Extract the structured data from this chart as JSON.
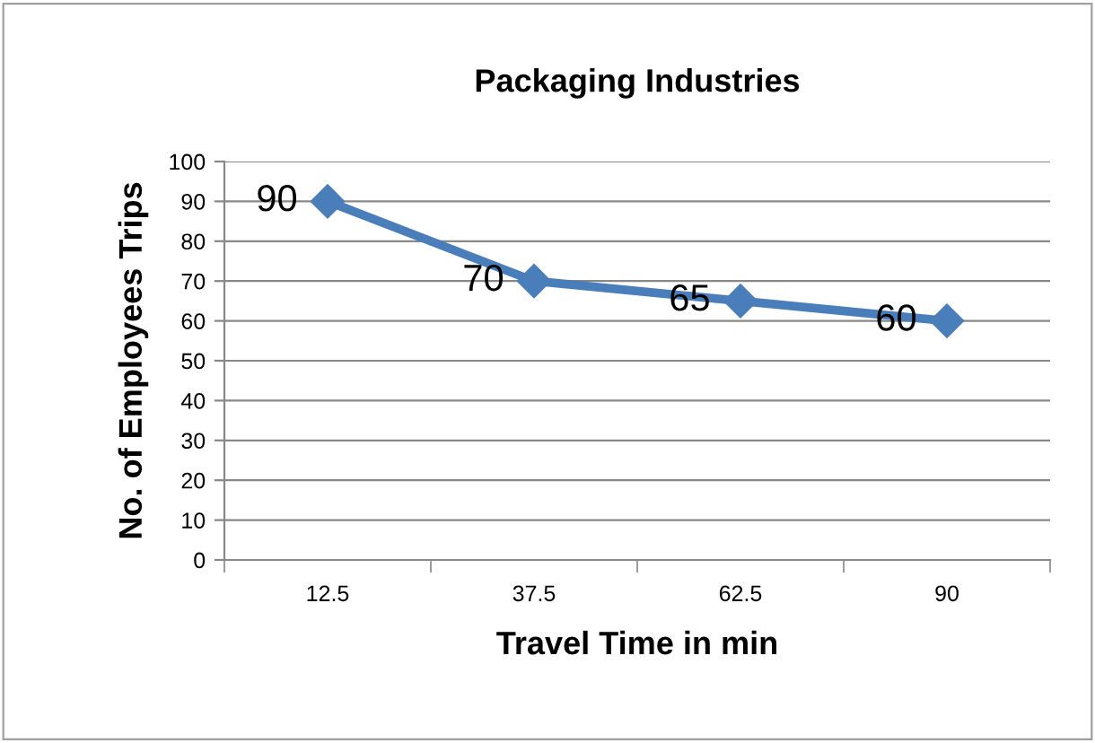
{
  "chart_data": {
    "type": "line",
    "title": "Packaging Industries",
    "xlabel": "Travel Time in min",
    "ylabel": "No. of Employees Trips",
    "categories": [
      "12.5",
      "37.5",
      "62.5",
      "90"
    ],
    "series": [
      {
        "color": "#4a7ebb",
        "values": [
          90,
          70,
          65,
          60
        ]
      }
    ],
    "ylim": [
      0,
      100
    ],
    "yticks": [
      0,
      10,
      20,
      30,
      40,
      50,
      60,
      70,
      80,
      90,
      100
    ],
    "grid": "y",
    "marker": "diamond",
    "line_style": "solid",
    "data_labels": true,
    "legend": false
  }
}
